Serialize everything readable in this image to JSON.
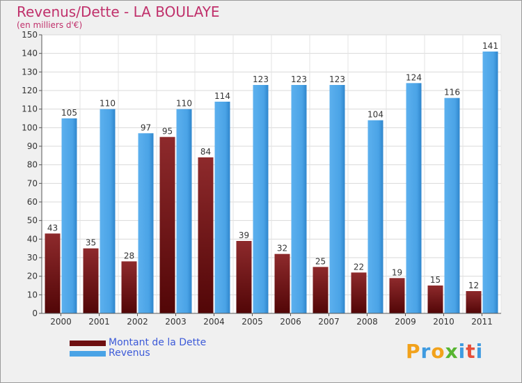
{
  "header": {
    "title": "Revenus/Dette - LA BOULAYE",
    "subtitle": "(en milliers d'€)"
  },
  "chart_data": {
    "type": "bar",
    "title": "Revenus/Dette - LA BOULAYE",
    "subtitle": "(en milliers d'€)",
    "xlabel": "",
    "ylabel": "",
    "ylim": [
      0,
      150
    ],
    "yticks": [
      0,
      10,
      20,
      30,
      40,
      50,
      60,
      70,
      80,
      90,
      100,
      110,
      120,
      130,
      140,
      150
    ],
    "grid": true,
    "categories": [
      "2000",
      "2001",
      "2002",
      "2003",
      "2004",
      "2005",
      "2006",
      "2007",
      "2008",
      "2009",
      "2010",
      "2011"
    ],
    "series": [
      {
        "name": "Montant de la Dette",
        "color": "#7a1a1c",
        "values": [
          43,
          35,
          28,
          95,
          84,
          39,
          32,
          25,
          22,
          19,
          15,
          12
        ]
      },
      {
        "name": "Revenus",
        "color": "#4aa3e6",
        "values": [
          105,
          110,
          97,
          110,
          114,
          123,
          123,
          123,
          104,
          124,
          116,
          141
        ]
      }
    ],
    "legend_position": "bottom-left"
  },
  "legend": {
    "items": [
      {
        "label": "Montant de la Dette",
        "color": "#6e0f10"
      },
      {
        "label": "Revenus",
        "color": "#4aa3e6"
      }
    ]
  },
  "logo": {
    "letters": [
      "P",
      "r",
      "o",
      "x",
      "i",
      "t",
      "i"
    ],
    "colors": [
      "#f2a21b",
      "#3f9be0",
      "#f2a21b",
      "#58b531",
      "#3f9be0",
      "#e64f3a",
      "#3f9be0"
    ]
  }
}
